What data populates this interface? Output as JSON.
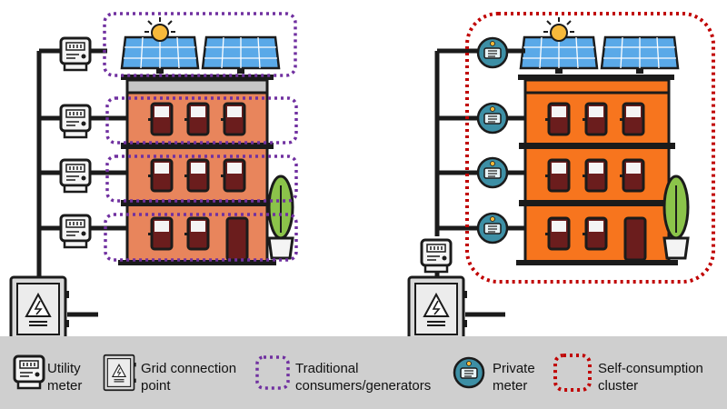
{
  "legend": {
    "utility_meter_label_1": "Utility",
    "utility_meter_label_2": "meter",
    "grid_connection_label_1": "Grid connection",
    "grid_connection_label_2": "point",
    "traditional_label_1": "Traditional",
    "traditional_label_2": "consumers/generators",
    "private_meter_label_1": "Private",
    "private_meter_label_2": "meter",
    "self_consumption_label_1": "Self-consumption",
    "self_consumption_label_2": "cluster"
  },
  "colors": {
    "wall_left": "#e8855c",
    "wall_right": "#f7751e",
    "dark": "#1b1b1b",
    "window_dark": "#6b1d1d",
    "roof_gray": "#c6c6c6",
    "solar_blue": "#5aa9e8",
    "sun": "#f6b93b",
    "traditional_outline": "#7030a0",
    "cluster_outline": "#c00000",
    "private_meter_fill": "#3d8fa5",
    "legend_bg": "#cfcfcf",
    "plant_green": "#8bc34a"
  }
}
